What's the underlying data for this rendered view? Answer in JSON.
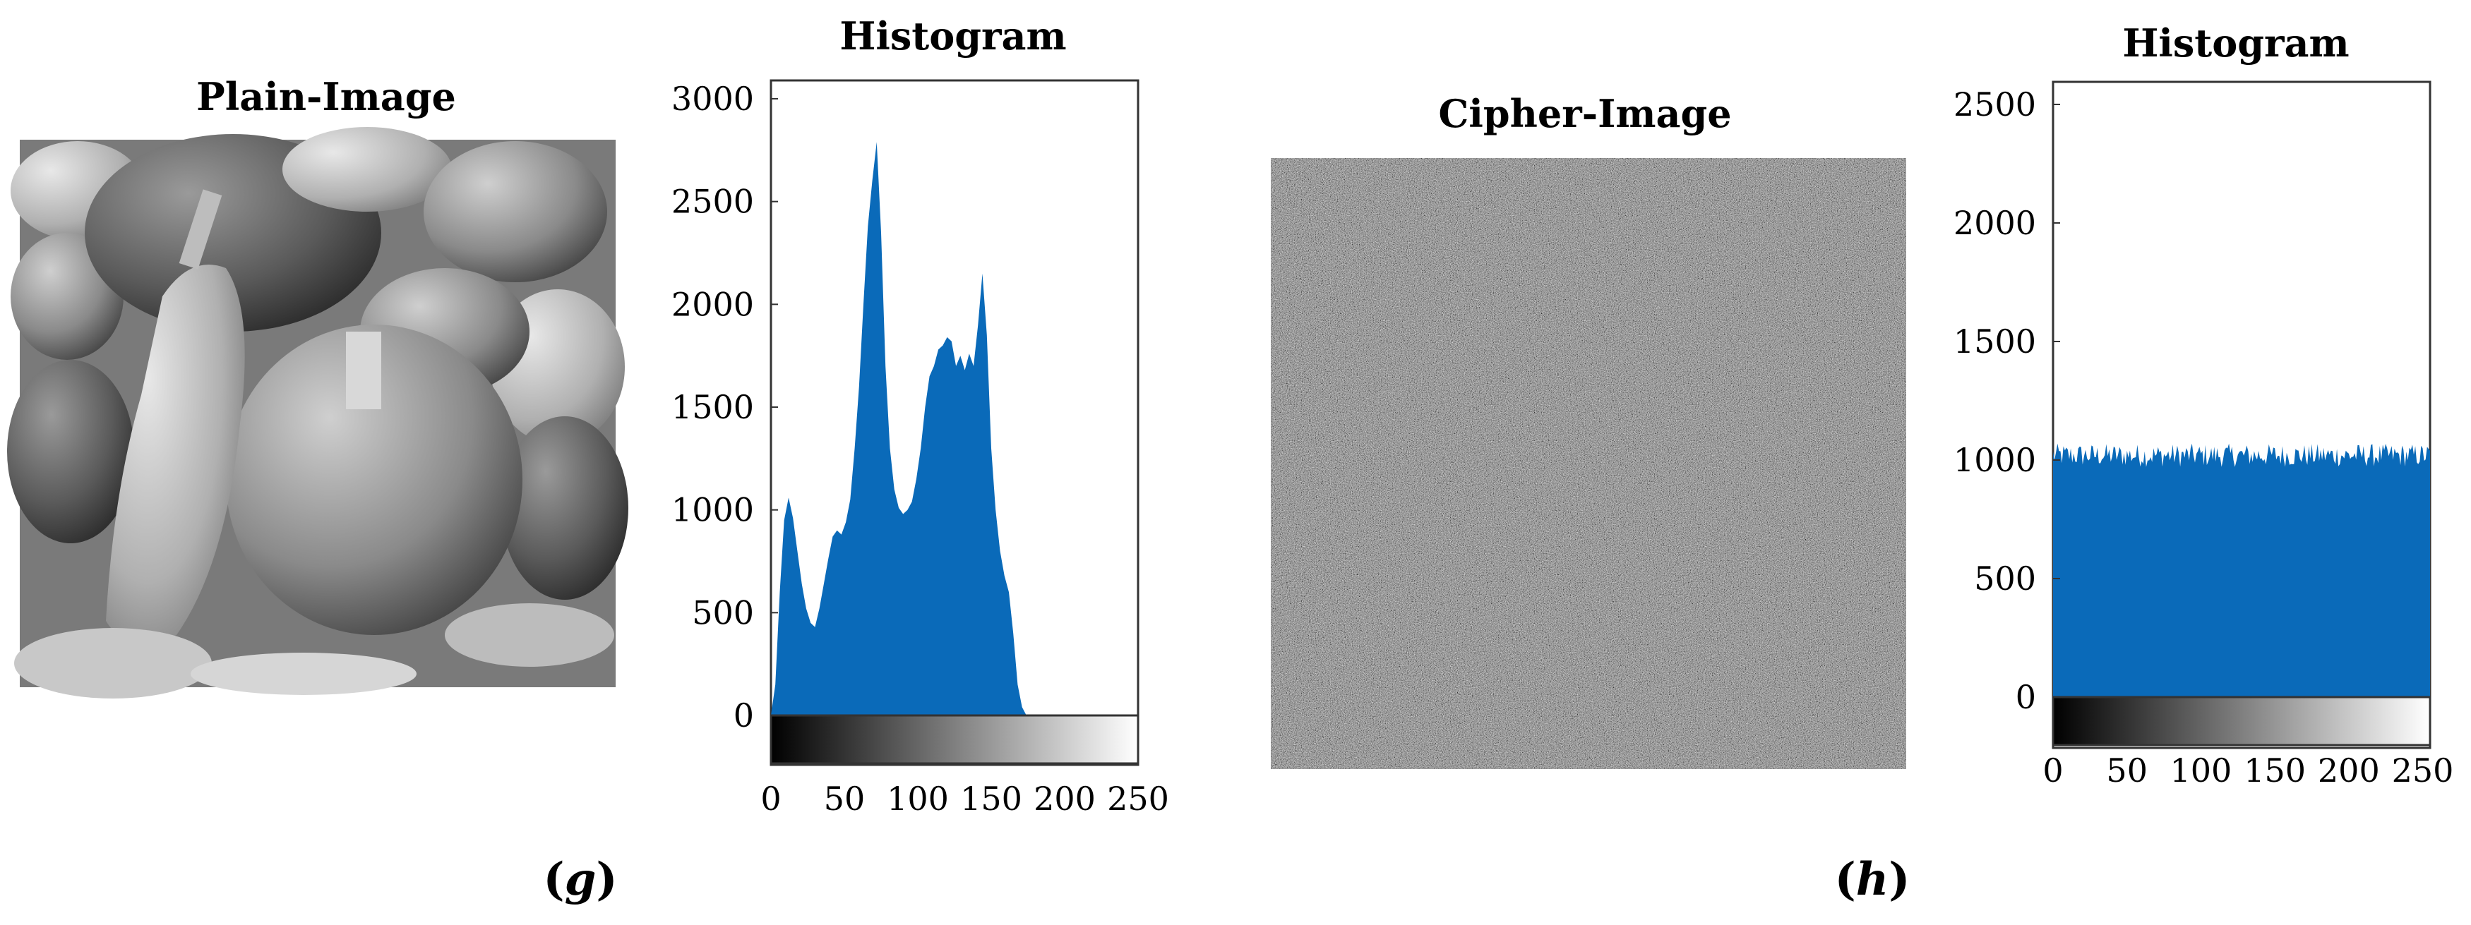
{
  "panel_g": {
    "label_open": "(",
    "label_letter": "g",
    "label_close": ")",
    "image_title": "Plain-Image",
    "image_icon": "peppers-photo",
    "histogram_title": "Histogram"
  },
  "panel_h": {
    "label_open": "(",
    "label_letter": "h",
    "label_close": ")",
    "image_title": "Cipher-Image",
    "image_icon": "noise-photo",
    "histogram_title": "Histogram"
  },
  "chart_data": [
    {
      "type": "area",
      "title": "Histogram",
      "xlabel": "",
      "ylabel": "",
      "xlim": [
        0,
        250
      ],
      "ylim": [
        -300,
        3000
      ],
      "x_ticks": [
        "0",
        "50",
        "100",
        "150",
        "200",
        "250"
      ],
      "y_ticks": [
        "0",
        "500",
        "1000",
        "1500",
        "2000",
        "2500",
        "3000"
      ],
      "x_tick_values": [
        0,
        50,
        100,
        150,
        200,
        250
      ],
      "y_tick_values": [
        0,
        500,
        1000,
        1500,
        2000,
        2500,
        3000
      ],
      "grayscale_bar": true,
      "fill_color": "#0a6ab9",
      "series": [
        {
          "x": [
            0,
            3,
            6,
            9,
            12,
            15,
            18,
            21,
            24,
            27,
            30,
            33,
            36,
            39,
            42,
            45,
            48,
            51,
            54,
            57,
            60,
            63,
            66,
            69,
            72,
            75,
            78,
            81,
            84,
            87,
            90,
            93,
            96,
            99,
            102,
            105,
            108,
            111,
            114,
            117,
            120,
            123,
            126,
            129,
            132,
            135,
            138,
            141,
            144,
            147,
            150,
            153,
            156,
            159,
            162,
            165,
            168,
            171,
            174,
            177,
            180,
            183,
            186,
            189,
            192,
            195,
            198,
            201,
            204,
            207,
            210,
            213,
            216,
            219
          ],
          "values": [
            0,
            150,
            600,
            950,
            1060,
            960,
            800,
            640,
            520,
            450,
            430,
            520,
            640,
            760,
            870,
            900,
            880,
            940,
            1050,
            1300,
            1600,
            2000,
            2380,
            2600,
            2790,
            2350,
            1700,
            1300,
            1100,
            1010,
            980,
            1000,
            1040,
            1150,
            1300,
            1500,
            1650,
            1700,
            1780,
            1800,
            1840,
            1820,
            1700,
            1750,
            1680,
            1760,
            1700,
            1900,
            2150,
            1850,
            1300,
            1000,
            800,
            680,
            600,
            400,
            150,
            40,
            0,
            0,
            0,
            0,
            0,
            0,
            0,
            0,
            0,
            0,
            0,
            0,
            0,
            0,
            0,
            0
          ]
        }
      ]
    },
    {
      "type": "area",
      "title": "Histogram",
      "xlabel": "",
      "ylabel": "",
      "xlim": [
        0,
        255
      ],
      "ylim": [
        -250,
        2600
      ],
      "x_ticks": [
        "0",
        "50",
        "100",
        "150",
        "200",
        "250"
      ],
      "y_ticks": [
        "0",
        "500",
        "1000",
        "1500",
        "2000",
        "2500"
      ],
      "x_tick_values": [
        0,
        50,
        100,
        150,
        200,
        250
      ],
      "y_tick_values": [
        0,
        500,
        1000,
        1500,
        2000,
        2500
      ],
      "grayscale_bar": true,
      "fill_color": "#0a6ab9",
      "series": [
        {
          "x": [
            0,
            255
          ],
          "values": [
            1020,
            1020
          ],
          "noise_range": [
            970,
            1080
          ]
        }
      ]
    }
  ]
}
